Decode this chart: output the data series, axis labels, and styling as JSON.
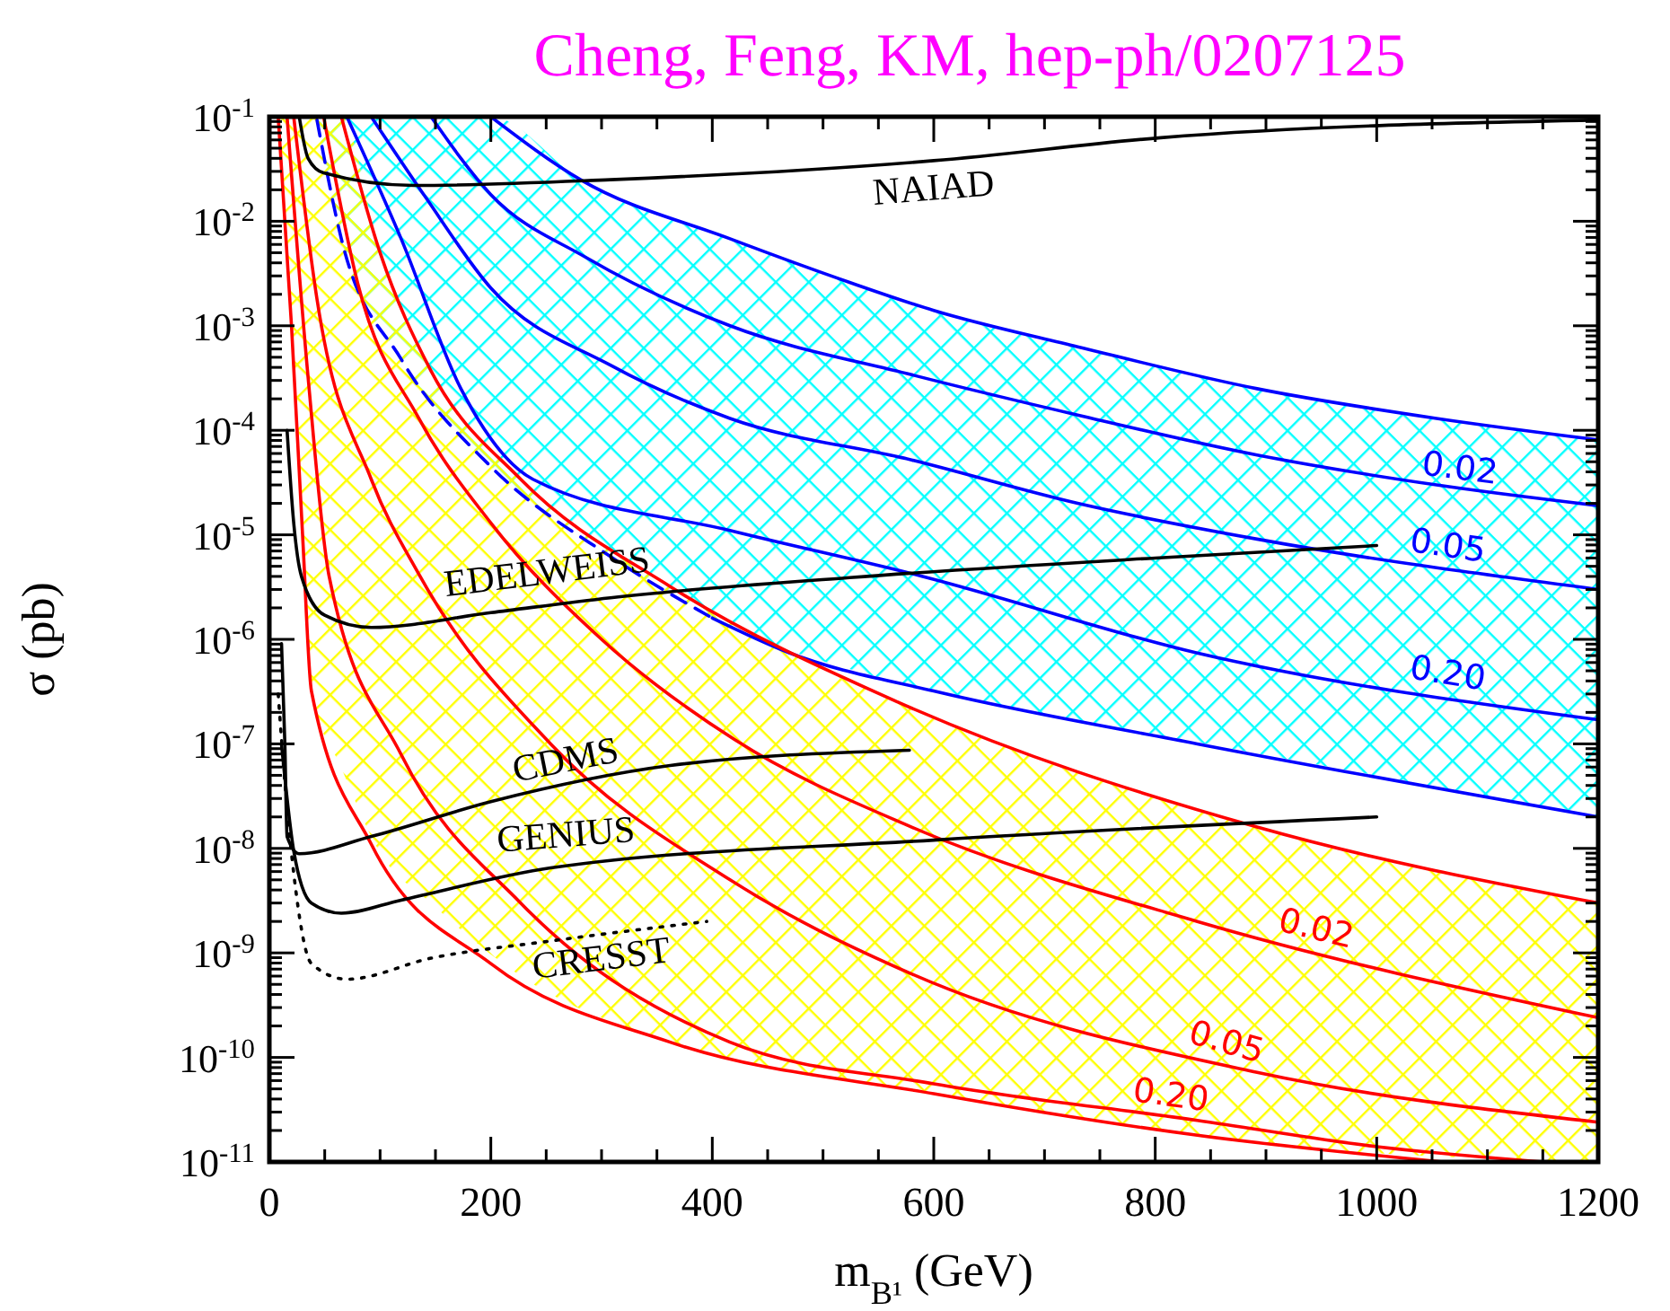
{
  "chart_data": {
    "type": "line",
    "title": "Cheng, Feng, KM, hep-ph/0207125",
    "xlabel": "m$_{B¹}$ (GeV)",
    "ylabel": "σ (pb)",
    "log": "y",
    "xlim": [
      0,
      1200
    ],
    "ylim": [
      1e-11,
      0.1
    ],
    "xticks": [
      0,
      {
        "value": 50,
        "label": null
      },
      {
        "value": 100,
        "label": null
      },
      {
        "value": 150,
        "label": null
      },
      200,
      {
        "value": 250,
        "label": null
      },
      {
        "value": 300,
        "label": null
      },
      {
        "value": 350,
        "label": null
      },
      400,
      {
        "value": 450,
        "label": null
      },
      {
        "value": 500,
        "label": null
      },
      {
        "value": 550,
        "label": null
      },
      600,
      {
        "value": 650,
        "label": null
      },
      {
        "value": 700,
        "label": null
      },
      {
        "value": 750,
        "label": null
      },
      800,
      {
        "value": 850,
        "label": null
      },
      {
        "value": 900,
        "label": null
      },
      {
        "value": 950,
        "label": null
      },
      1000,
      {
        "value": 1050,
        "label": null
      },
      {
        "value": 1100,
        "label": null
      },
      {
        "value": 1150,
        "label": null
      },
      1200
    ],
    "yticks": [
      {
        "value": 1e-11,
        "label": "10$^{-11}$"
      },
      {
        "value": 1e-10,
        "label": "10$^{-10}$"
      },
      {
        "value": 1e-09,
        "label": "10$^{-9}$"
      },
      {
        "value": 1e-08,
        "label": "10$^{-8}$"
      },
      {
        "value": 1e-07,
        "label": "10$^{-7}$"
      },
      {
        "value": 1e-06,
        "label": "10$^{-6}$"
      },
      {
        "value": 1e-05,
        "label": "10$^{-5}$"
      },
      {
        "value": 0.0001,
        "label": "10$^{-4}$"
      },
      {
        "value": 0.001,
        "label": "10$^{-3}$"
      },
      {
        "value": 0.01,
        "label": "10$^{-2}$"
      },
      {
        "value": 0.1,
        "label": "10$^{-1}$"
      },
      {
        "value": 2e-11,
        "label": null
      },
      {
        "value": 3e-11,
        "label": null
      },
      {
        "value": 4e-11,
        "label": null
      },
      {
        "value": 5e-11,
        "label": null
      },
      {
        "value": 6e-11,
        "label": null
      },
      {
        "value": 7e-11,
        "label": null
      },
      {
        "value": 8e-11,
        "label": null
      },
      {
        "value": 9e-11,
        "label": null
      },
      {
        "value": 2e-10,
        "label": null
      },
      {
        "value": 3e-10,
        "label": null
      },
      {
        "value": 4e-10,
        "label": null
      },
      {
        "value": 5e-10,
        "label": null
      },
      {
        "value": 6e-10,
        "label": null
      },
      {
        "value": 7e-10,
        "label": null
      },
      {
        "value": 8e-10,
        "label": null
      },
      {
        "value": 9e-10,
        "label": null
      },
      {
        "value": 2e-09,
        "label": null
      },
      {
        "value": 3e-09,
        "label": null
      },
      {
        "value": 4e-09,
        "label": null
      },
      {
        "value": 5e-09,
        "label": null
      },
      {
        "value": 6e-09,
        "label": null
      },
      {
        "value": 7e-09,
        "label": null
      },
      {
        "value": 8e-09,
        "label": null
      },
      {
        "value": 9e-09,
        "label": null
      },
      {
        "value": 2e-08,
        "label": null
      },
      {
        "value": 3e-08,
        "label": null
      },
      {
        "value": 4e-08,
        "label": null
      },
      {
        "value": 5e-08,
        "label": null
      },
      {
        "value": 6e-08,
        "label": null
      },
      {
        "value": 7e-08,
        "label": null
      },
      {
        "value": 8e-08,
        "label": null
      },
      {
        "value": 9e-08,
        "label": null
      },
      {
        "value": 2e-07,
        "label": null
      },
      {
        "value": 3e-07,
        "label": null
      },
      {
        "value": 4e-07,
        "label": null
      },
      {
        "value": 5e-07,
        "label": null
      },
      {
        "value": 6e-07,
        "label": null
      },
      {
        "value": 7e-07,
        "label": null
      },
      {
        "value": 8e-07,
        "label": null
      },
      {
        "value": 9e-07,
        "label": null
      },
      {
        "value": 2e-06,
        "label": null
      },
      {
        "value": 3e-06,
        "label": null
      },
      {
        "value": 4e-06,
        "label": null
      },
      {
        "value": 5e-06,
        "label": null
      },
      {
        "value": 6e-06,
        "label": null
      },
      {
        "value": 7e-06,
        "label": null
      },
      {
        "value": 8e-06,
        "label": null
      },
      {
        "value": 9e-06,
        "label": null
      },
      {
        "value": 2e-05,
        "label": null
      },
      {
        "value": 3e-05,
        "label": null
      },
      {
        "value": 4e-05,
        "label": null
      },
      {
        "value": 5e-05,
        "label": null
      },
      {
        "value": 6e-05,
        "label": null
      },
      {
        "value": 7e-05,
        "label": null
      },
      {
        "value": 8e-05,
        "label": null
      },
      {
        "value": 9e-05,
        "label": null
      },
      {
        "value": 0.0002,
        "label": null
      },
      {
        "value": 0.0003,
        "label": null
      },
      {
        "value": 0.0004,
        "label": null
      },
      {
        "value": 0.0005,
        "label": null
      },
      {
        "value": 0.0006,
        "label": null
      },
      {
        "value": 0.0007,
        "label": null
      },
      {
        "value": 0.0008,
        "label": null
      },
      {
        "value": 0.0009,
        "label": null
      },
      {
        "value": 0.002,
        "label": null
      },
      {
        "value": 0.003,
        "label": null
      },
      {
        "value": 0.004,
        "label": null
      },
      {
        "value": 0.005,
        "label": null
      },
      {
        "value": 0.006,
        "label": null
      },
      {
        "value": 0.007,
        "label": null
      },
      {
        "value": 0.008,
        "label": null
      },
      {
        "value": 0.009,
        "label": null
      },
      {
        "value": 0.02,
        "label": null
      },
      {
        "value": 0.03,
        "label": null
      },
      {
        "value": 0.04,
        "label": null
      },
      {
        "value": 0.05,
        "label": null
      },
      {
        "value": 0.06,
        "label": null
      },
      {
        "value": 0.07,
        "label": null
      },
      {
        "value": 0.08,
        "label": null
      },
      {
        "value": 0.09,
        "label": null
      }
    ],
    "series": [
      {
        "color": "#0000ff",
        "x": [
          43,
          65,
          119,
          200,
          281,
          416,
          524,
          600,
          730,
          892,
          1054,
          1200
        ],
        "values": [
          null,
          null,
          null,
          0.1,
          0.025,
          0.0068,
          0.0026,
          0.0014,
          0.00063,
          0.00025,
          0.00013,
          8.1e-05
        ],
        "upper": [
          0.1,
          0.1,
          0.1,
          0.1,
          0.025,
          0.0068,
          0.0026,
          0.0014,
          0.00063,
          0.00025,
          0.00013,
          8.1e-05
        ],
        "lower": [
          0.093,
          0.0068,
          0.00048,
          4.5e-05,
          1e-05,
          1.3e-06,
          5.2e-07,
          3.2e-07,
          1.7e-07,
          8.1e-08,
          3.9e-08,
          2e-08
        ]
      },
      {
        "name": "0.02",
        "color": "#0000ff",
        "x": [
          146,
          200,
          286,
          416,
          580,
          730,
          892,
          1054,
          1200
        ],
        "values": [
          0.1,
          0.018,
          0.0045,
          0.001,
          0.00034,
          0.00014,
          5.8e-05,
          3e-05,
          1.9e-05
        ]
      },
      {
        "name": "0.05",
        "color": "#0000ff",
        "x": [
          92,
          141,
          200,
          308,
          416,
          580,
          730,
          892,
          1200
        ],
        "values": [
          0.1,
          0.017,
          0.0023,
          0.00042,
          0.00013,
          5.2e-05,
          2e-05,
          9.1e-06,
          3e-06
        ]
      },
      {
        "name": "0.20",
        "color": "#0000ff",
        "x": [
          70,
          119,
          173,
          238,
          416,
          590,
          838,
          1200
        ],
        "values": [
          0.1,
          0.0068,
          0.00025,
          3.4e-05,
          1.1e-05,
          4e-06,
          7.4e-07,
          1.7e-07
        ]
      },
      {
        "color": "#0000ff",
        "line_style": "dashed",
        "x": [
          43,
          65,
          119,
          200,
          308,
          400
        ],
        "values": [
          0.093,
          0.0068,
          0.00048,
          4.5e-05,
          6.2e-06,
          1.6e-06
        ]
      },
      {
        "color": "#0000ff",
        "x": [
          400,
          470,
          600,
          838,
          1200
        ],
        "values": [
          1.6e-06,
          7.4e-07,
          3.2e-07,
          1e-07,
          2e-08
        ]
      },
      {
        "color": "#ff0000",
        "x": [
          8,
          20,
          30,
          38,
          65,
          100,
          146,
          227,
          362,
          568,
          892,
          1200
        ],
        "values": [
          null,
          null,
          null,
          null,
          0.1,
          0.005,
          0.00037,
          3.4e-05,
          3.2e-06,
          2.5e-07,
          1.6e-08,
          3e-09
        ],
        "upper": [
          0.1,
          0.1,
          0.1,
          0.1,
          0.1,
          0.005,
          0.00037,
          3.4e-05,
          3.2e-06,
          2.5e-07,
          1.6e-08,
          3e-09
        ],
        "lower": [
          0.1,
          0.001,
          1e-05,
          3.2e-07,
          5.9e-08,
          9.1e-09,
          3e-09,
          6e-10,
          1.4e-10,
          5.2e-11,
          1.5e-11,
          1e-11
        ]
      },
      {
        "name": "0.02",
        "color": "#ff0000",
        "x": [
          49,
          80,
          135,
          200,
          300,
          420,
          580,
          838,
          1200
        ],
        "values": [
          0.1,
          0.0025,
          0.00013,
          1.3e-05,
          1e-06,
          1.1e-07,
          1.6e-08,
          2e-09,
          2.4e-10
        ]
      },
      {
        "name": "0.05",
        "color": "#ff0000",
        "x": [
          22,
          43,
          92,
          135,
          254,
          416,
          580,
          892,
          1200
        ],
        "values": [
          0.1,
          0.0018,
          3.4e-05,
          4.2e-06,
          1e-07,
          5e-09,
          6.3e-10,
          7.2e-11,
          2.4e-11
        ]
      },
      {
        "color": "#ff0000",
        "x": [
          8,
          20,
          30,
          38,
          92,
          200,
          362,
          600,
          838,
          1060
        ],
        "values": [
          0.1,
          0.001,
          1e-05,
          3.2e-07,
          1.1e-08,
          7.9e-10,
          1.4e-10,
          4.5e-11,
          1.8e-11,
          1e-11
        ]
      },
      {
        "name": "0.20",
        "color": "#ff0000",
        "x": [
          16,
          35,
          54,
          119,
          227,
          416,
          600,
          838,
          1000,
          1150
        ],
        "values": [
          0.1,
          0.00032,
          4e-06,
          7.9e-08,
          3e-09,
          1.4e-10,
          5.6e-11,
          2.5e-11,
          1.4e-11,
          1e-11
        ]
      },
      {
        "name": "NAIAD",
        "color": "#000000",
        "x": [
          27,
          35,
          49,
          130,
          308,
          600,
          805,
          1200
        ],
        "values": [
          0.1,
          0.04,
          0.029,
          0.022,
          0.025,
          0.038,
          0.063,
          0.093
        ]
      },
      {
        "name": "EDELWEISS",
        "color": "#000000",
        "x": [
          16,
          22,
          29,
          50,
          92,
          200,
          308,
          524,
          800,
          1000
        ],
        "values": [
          0.0001,
          1.3e-05,
          4e-06,
          1.7e-06,
          1.3e-06,
          1.8e-06,
          2.5e-06,
          3.9e-06,
          6e-06,
          7.9e-06
        ]
      },
      {
        "name": "CDMS",
        "color": "#000000",
        "x": [
          11,
          14,
          16,
          27,
          92,
          200,
          362,
          578
        ],
        "values": [
          9.1e-07,
          1e-07,
          1.3e-08,
          8.9e-09,
          1.3e-08,
          2.8e-08,
          6.2e-08,
          8.7e-08
        ]
      },
      {
        "name": "GENIUS",
        "color": "#000000",
        "x": [
          11,
          22,
          38,
          65,
          119,
          254,
          600,
          1000
        ],
        "values": [
          9.8e-08,
          9.5e-09,
          3e-09,
          2.4e-09,
          3.2e-09,
          6.5e-09,
          1.2e-08,
          2e-08
        ]
      },
      {
        "name": "CRESST",
        "color": "#000000",
        "line_style": "dotted",
        "x": [
          8,
          15,
          22,
          38,
          70,
          146,
          254,
          395
        ],
        "values": [
          3e-07,
          3.2e-08,
          5.8e-09,
          7.9e-10,
          5.6e-10,
          8.9e-10,
          1.3e-09,
          2e-09
        ]
      }
    ]
  }
}
